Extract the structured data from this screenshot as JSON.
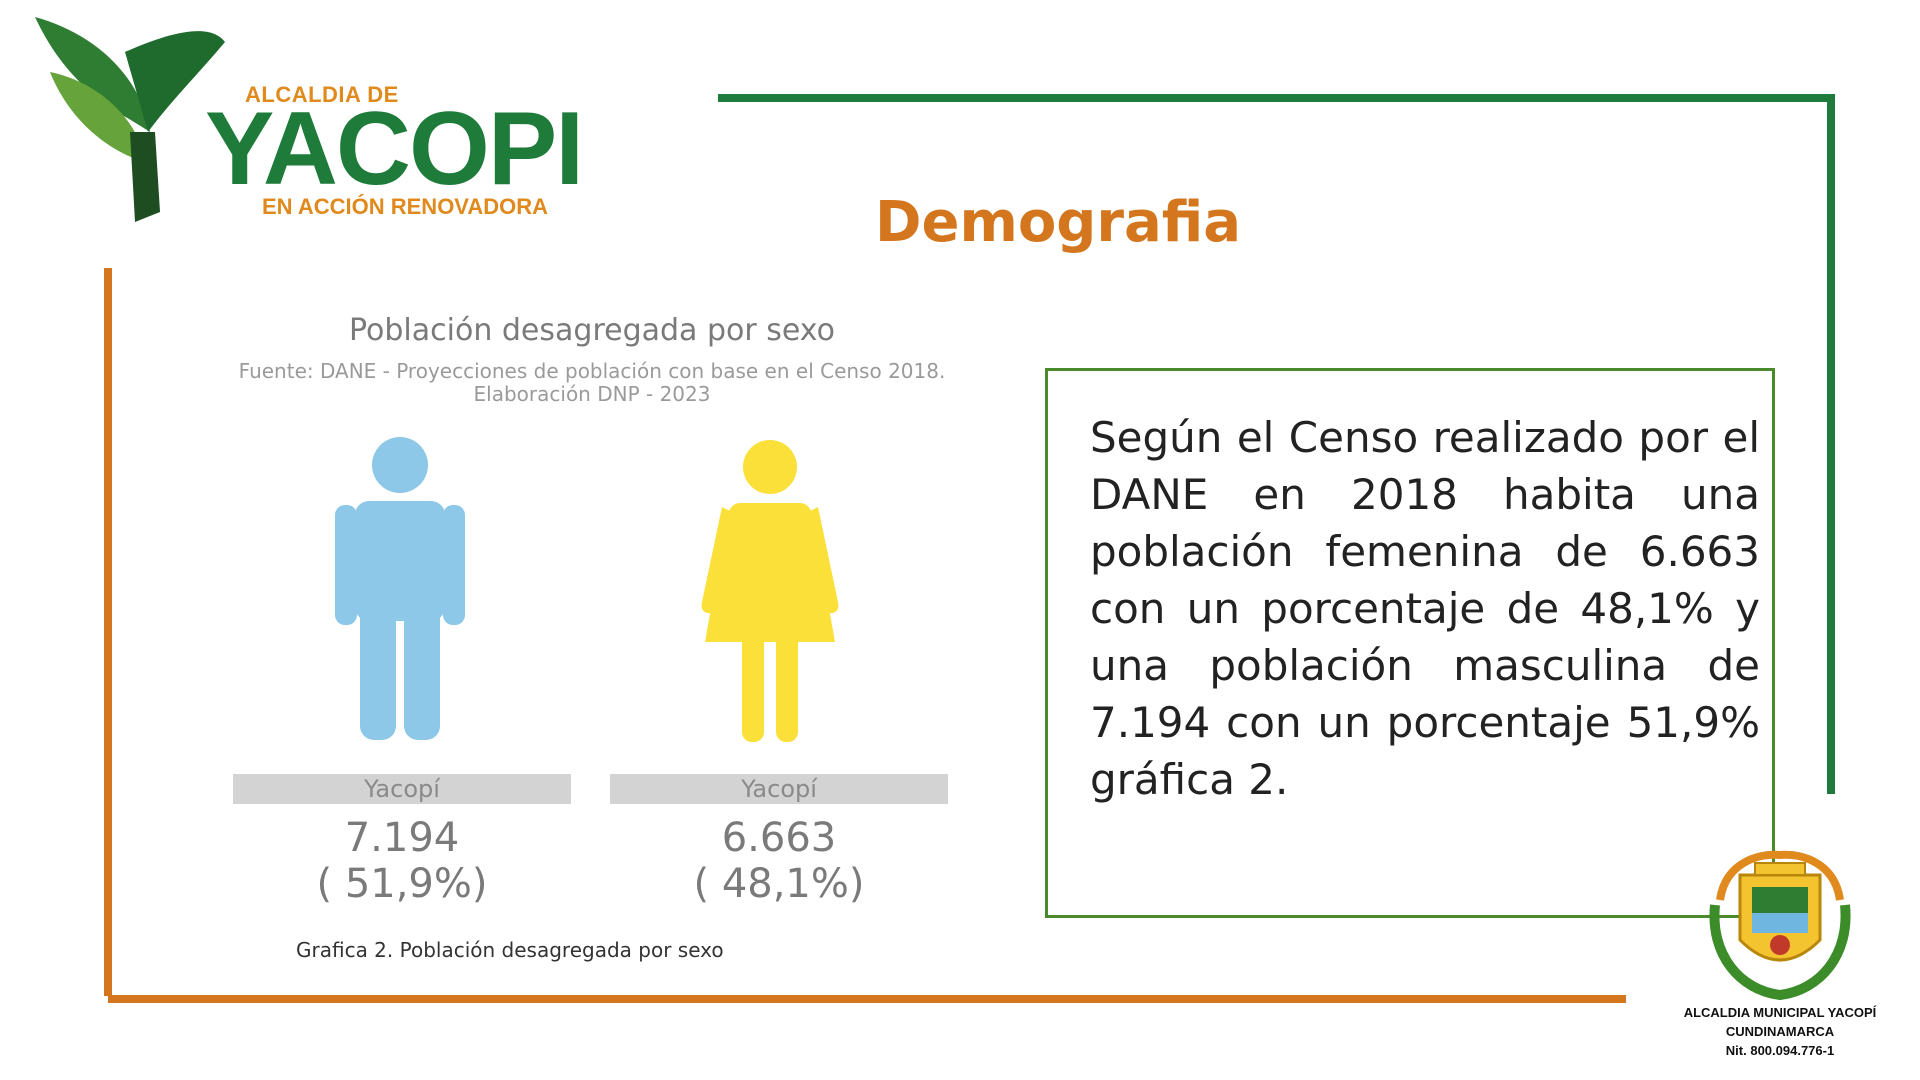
{
  "logo": {
    "line1": "ALCALDIA DE",
    "line2": "YACOPI",
    "line3": "EN ACCIÓN RENOVADORA"
  },
  "page_title": "Demografia",
  "infographic": {
    "title": "Población desagregada por sexo",
    "source_line1": "Fuente: DANE - Proyecciones de población con base en el Censo 2018.",
    "source_line2": "Elaboración DNP - 2023",
    "male": {
      "label": "Yacopí",
      "value": "7.194",
      "percent": "( 51,9%)",
      "color": "#8ec8e8"
    },
    "female": {
      "label": "Yacopí",
      "value": "6.663",
      "percent": "( 48,1%)",
      "color": "#fbe03a"
    },
    "caption": "Grafica 2. Población desagregada por sexo"
  },
  "text_box": {
    "body": "Según el Censo realizado por el DANE en 2018 habita una población femenina de 6.663 con un porcentaje de 48,1% y una población masculina de 7.194 con un porcentaje 51,9% gráfica 2."
  },
  "seal": {
    "line1": "ALCALDIA MUNICIPAL YACOPÍ",
    "line2": "CUNDINAMARCA",
    "line3": "Nit. 800.094.776-1"
  },
  "colors": {
    "accent_orange": "#d4761e",
    "accent_green": "#1f7a3d",
    "box_border": "#4a8a2c"
  }
}
